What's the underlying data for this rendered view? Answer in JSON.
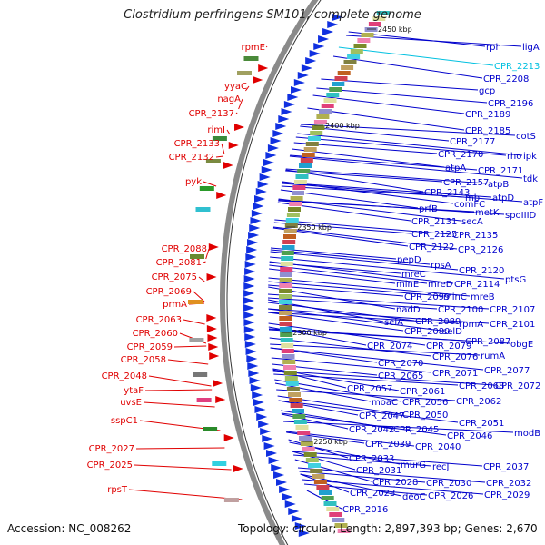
{
  "title": "Clostridium perfringens SM101, complete genome",
  "accession": "Accession: NC_008262",
  "topology": "Topology: circular; Length: 2,897,393 bp; Genes: 2,670",
  "colors": {
    "red_labels": "#e00000",
    "blue_labels": "#0000cc",
    "highlight": "#00c0e0",
    "backbone": "#888888"
  },
  "kbp_labels": [
    "2450 kbp",
    "2400 kbp",
    "2350 kbp",
    "2300 kbp",
    "2250 kbp"
  ],
  "left_genes": [
    "rpmE",
    "yyaC",
    "nagA",
    "CPR_2137",
    "rimI",
    "CPR_2133",
    "CPR_2132",
    "pyk",
    "CPR_2088",
    "CPR_2081",
    "CPR_2075",
    "CPR_2069",
    "prmA",
    "CPR_2063",
    "CPR_2060",
    "CPR_2059",
    "CPR_2058",
    "CPR_2048",
    "ytaF",
    "uvsE",
    "sspC1",
    "CPR_2027",
    "CPR_2025",
    "rpsT"
  ],
  "right_genes": [
    "ligA",
    "rph",
    "CPR_2213",
    "CPR_2208",
    "gcp",
    "CPR_2196",
    "CPR_2189",
    "CPR_2185",
    "cotS",
    "CPR_2177",
    "rho",
    "ipk",
    "CPR_2170",
    "CPR_2171",
    "atpA",
    "tdk",
    "CPR_2157",
    "atpB",
    "atpF",
    "CPR_2143",
    "mbl",
    "atpD",
    "prfB",
    "comFC",
    "metK",
    "spoIIID",
    "CPR_2131",
    "secA",
    "CPR_2125",
    "CPR_2135",
    "CPR_2122",
    "CPR_2126",
    "pepD",
    "rpsA",
    "CPR_2120",
    "ptsG",
    "mreC",
    "minE",
    "mreD",
    "CPR_2114",
    "CPR_2099",
    "minC",
    "mreB",
    "nadD",
    "CPR_2100",
    "CPR_2107",
    "CPR_2089",
    "selA",
    "rpmA",
    "CPR_2101",
    "CPR_2080",
    "selD",
    "CPR_2087",
    "obgE",
    "CPR_2074",
    "CPR_2079",
    "rumA",
    "CPR_2070",
    "CPR_2076",
    "CPR_2077",
    "CPR_2065",
    "CPR_2071",
    "CPR_2057",
    "CPR_2061",
    "CPR_2068",
    "CPR_2072",
    "moaC",
    "CPR_2056",
    "CPR_2062",
    "CPR_2047",
    "CPR_2050",
    "CPR_2051",
    "modB",
    "CPR_2042",
    "CPR_2045",
    "CPR_2046",
    "CPR_2039",
    "CPR_2040",
    "CPR_2033",
    "murG",
    "recJ",
    "CPR_2037",
    "CPR_2031",
    "CPR_2028",
    "CPR_2030",
    "CPR_2032",
    "CPR_2023",
    "deoC",
    "CPR_2026",
    "CPR_2029",
    "CPR_2016"
  ]
}
